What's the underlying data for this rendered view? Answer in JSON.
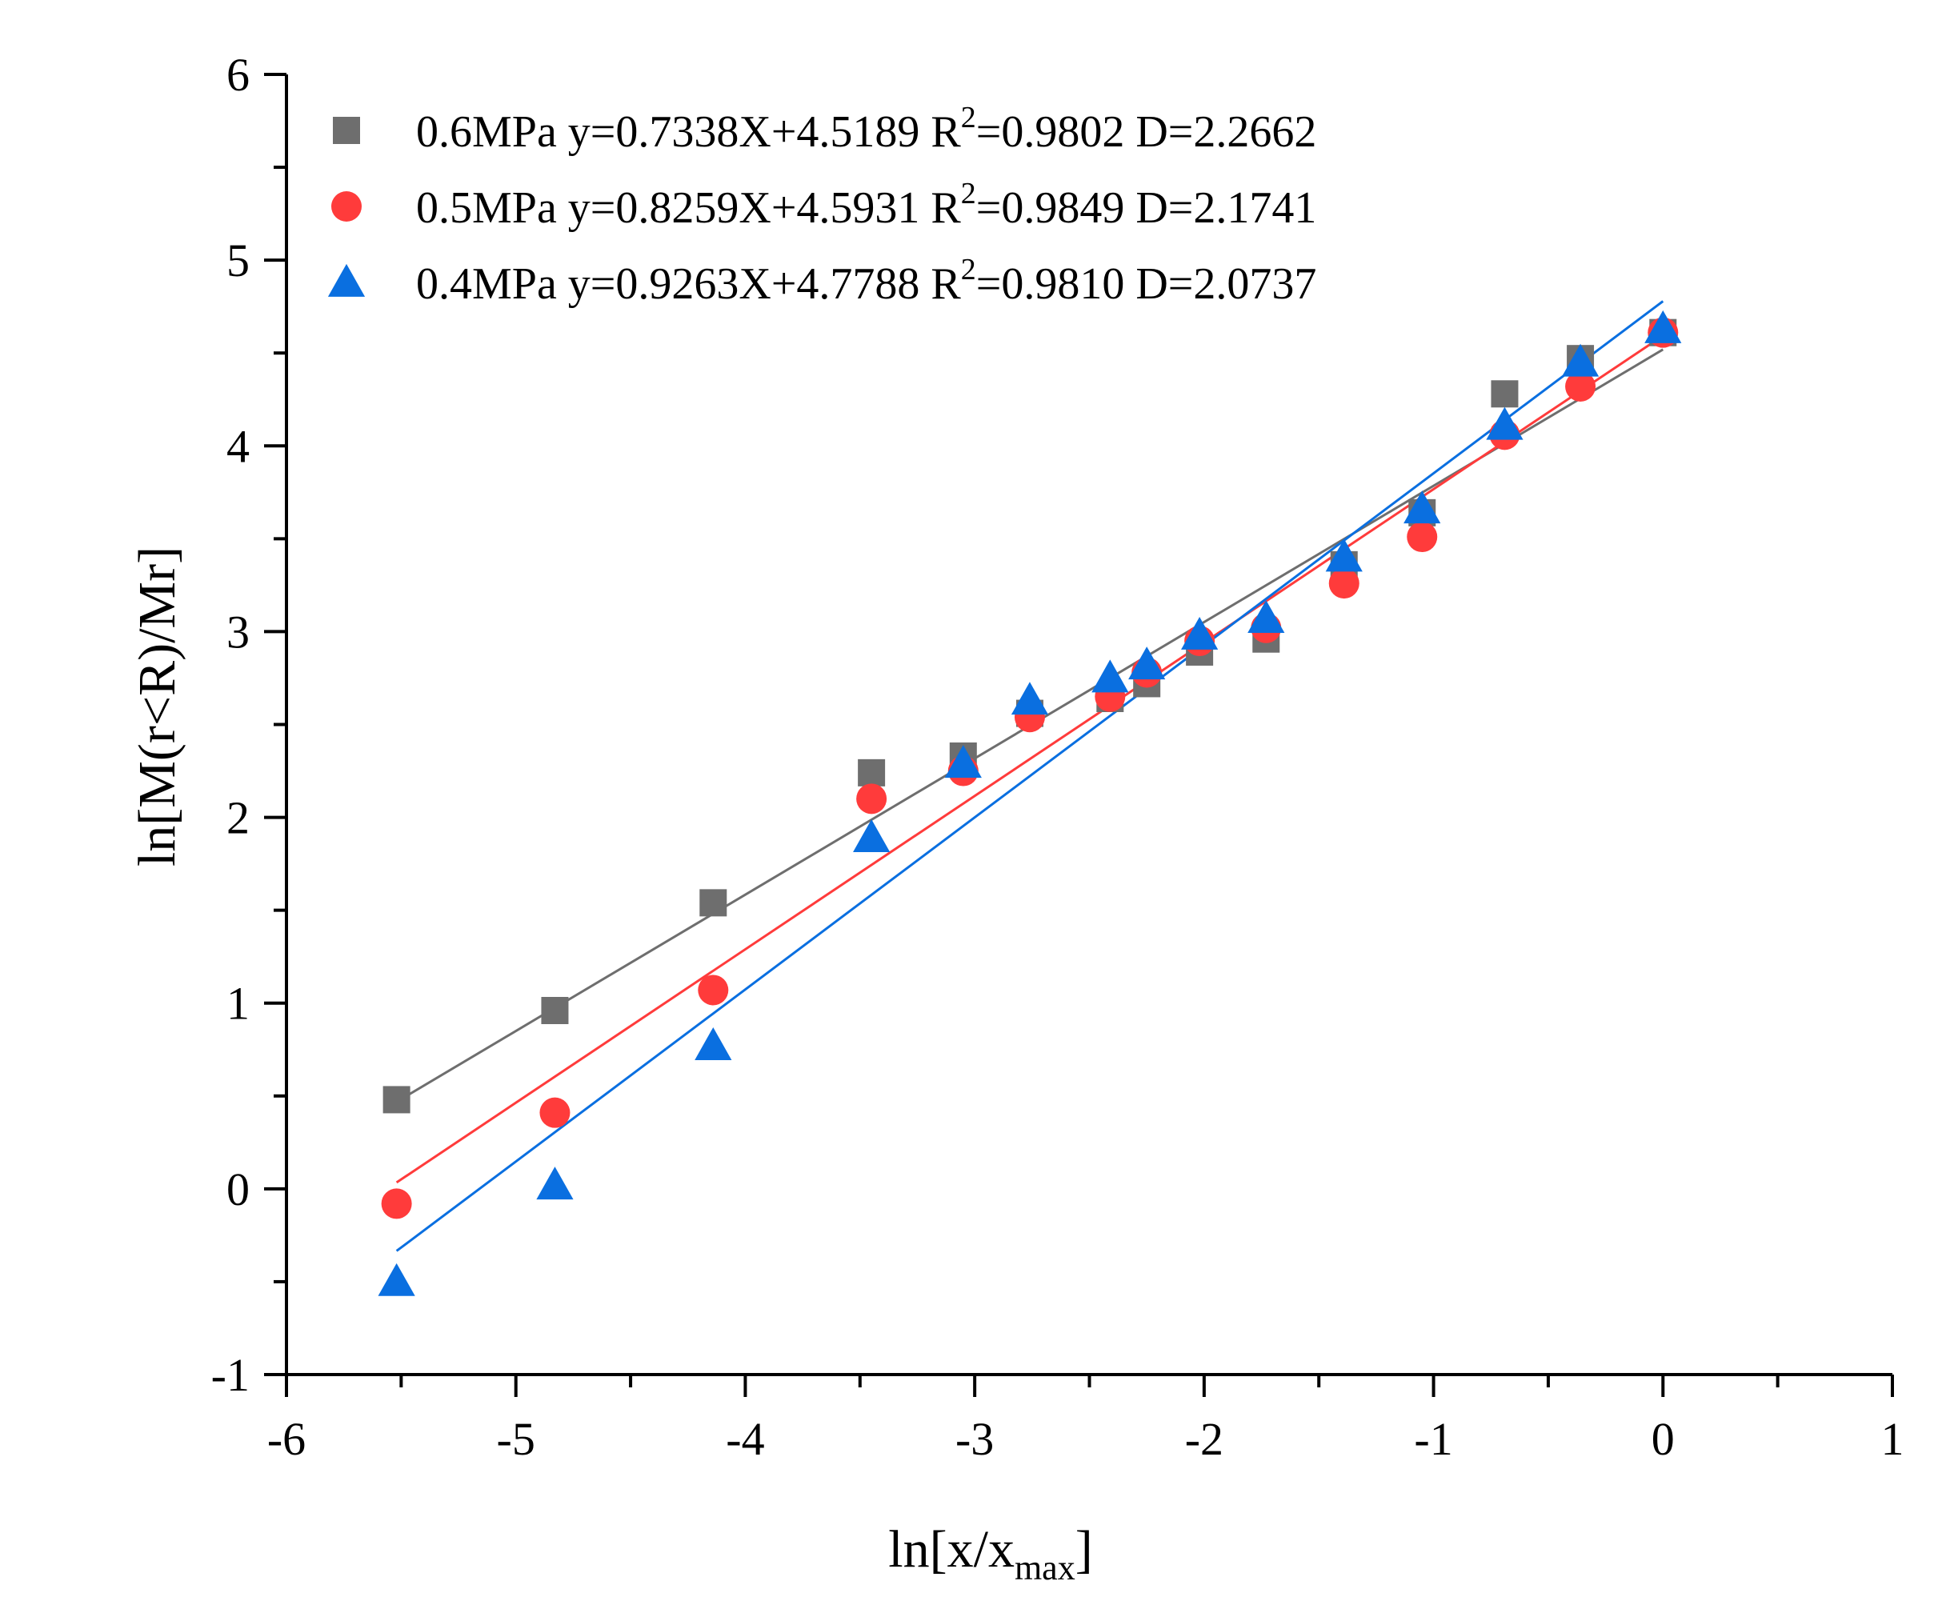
{
  "chart_data": {
    "type": "scatter",
    "title": "",
    "xlabel": "ln[x/x",
    "xlabel_sub": "max",
    "xlabel_end": "]",
    "ylabel": "ln[M(r<R)/Mr]",
    "xlim": [
      -6,
      1
    ],
    "ylim": [
      -1,
      6
    ],
    "xticks": [
      -6,
      -5,
      -4,
      -3,
      -2,
      -1,
      0,
      1
    ],
    "xtick_labels": [
      "-6",
      "-5",
      "-4",
      "-3",
      "-2",
      "-1",
      "0",
      "1"
    ],
    "yticks": [
      -1,
      0,
      1,
      2,
      3,
      4,
      5,
      6
    ],
    "ytick_labels": [
      "-1",
      "0",
      "1",
      "2",
      "3",
      "4",
      "5",
      "6"
    ],
    "grid": false,
    "legend_position": "top-left",
    "series": [
      {
        "name": "0.6MPa",
        "marker": "square",
        "color": "#6e6e6e",
        "legend_pre": "0.6MPa y=0.7338X+4.5189 R",
        "legend_sup": "2",
        "legend_post": "=0.9802 D=2.2662",
        "fit": {
          "slope": 0.7338,
          "intercept": 4.5189,
          "x_range": [
            -5.52,
            0
          ]
        },
        "x": [
          -5.52,
          -4.83,
          -4.14,
          -3.45,
          -3.05,
          -2.76,
          -2.41,
          -2.25,
          -2.02,
          -1.73,
          -1.39,
          -1.05,
          -0.69,
          -0.36,
          0.0
        ],
        "y": [
          0.48,
          0.96,
          1.54,
          2.24,
          2.33,
          2.56,
          2.64,
          2.72,
          2.89,
          2.96,
          3.36,
          3.64,
          4.28,
          4.47,
          4.61
        ]
      },
      {
        "name": "0.5MPa",
        "marker": "circle",
        "color": "#ff3b3b",
        "legend_pre": "0.5MPa y=0.8259X+4.5931 R",
        "legend_sup": "2",
        "legend_post": "=0.9849 D=2.1741",
        "fit": {
          "slope": 0.8259,
          "intercept": 4.5931,
          "x_range": [
            -5.52,
            0
          ]
        },
        "x": [
          -5.52,
          -4.83,
          -4.14,
          -3.45,
          -3.05,
          -2.76,
          -2.41,
          -2.25,
          -2.02,
          -1.73,
          -1.39,
          -1.05,
          -0.69,
          -0.36,
          0.0
        ],
        "y": [
          -0.08,
          0.41,
          1.07,
          2.1,
          2.25,
          2.54,
          2.65,
          2.78,
          2.95,
          3.02,
          3.26,
          3.51,
          4.06,
          4.32,
          4.61
        ]
      },
      {
        "name": "0.4MPa",
        "marker": "triangle",
        "color": "#0a6fe0",
        "legend_pre": "0.4MPa y=0.9263X+4.7788 R",
        "legend_sup": "2",
        "legend_post": "=0.9810 D=2.0737",
        "fit": {
          "slope": 0.9263,
          "intercept": 4.7788,
          "x_range": [
            -5.52,
            0
          ]
        },
        "x": [
          -5.52,
          -4.83,
          -4.14,
          -3.45,
          -3.05,
          -2.76,
          -2.41,
          -2.25,
          -2.02,
          -1.73,
          -1.39,
          -1.05,
          -0.69,
          -0.36,
          0.0
        ],
        "y": [
          -0.5,
          0.02,
          0.77,
          1.89,
          2.29,
          2.63,
          2.75,
          2.82,
          2.98,
          3.07,
          3.4,
          3.66,
          4.11,
          4.45,
          4.63
        ]
      }
    ]
  }
}
